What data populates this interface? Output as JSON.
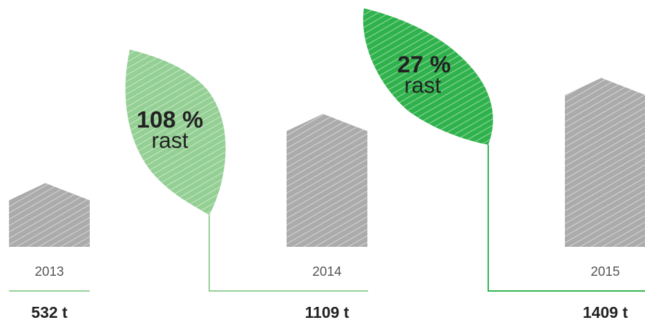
{
  "chart_data": {
    "type": "bar",
    "categories": [
      "2013",
      "2014",
      "2015"
    ],
    "values": [
      532,
      1109,
      1409
    ],
    "value_labels": [
      "532 t",
      "1109 t",
      "1409 t"
    ],
    "color": "#ababab",
    "growth_labels": [
      "108 %",
      "27 %"
    ],
    "growth_texts": [
      "rast",
      "rast"
    ],
    "leaf_colors": [
      "#94cf94",
      "#2fb24c"
    ]
  }
}
